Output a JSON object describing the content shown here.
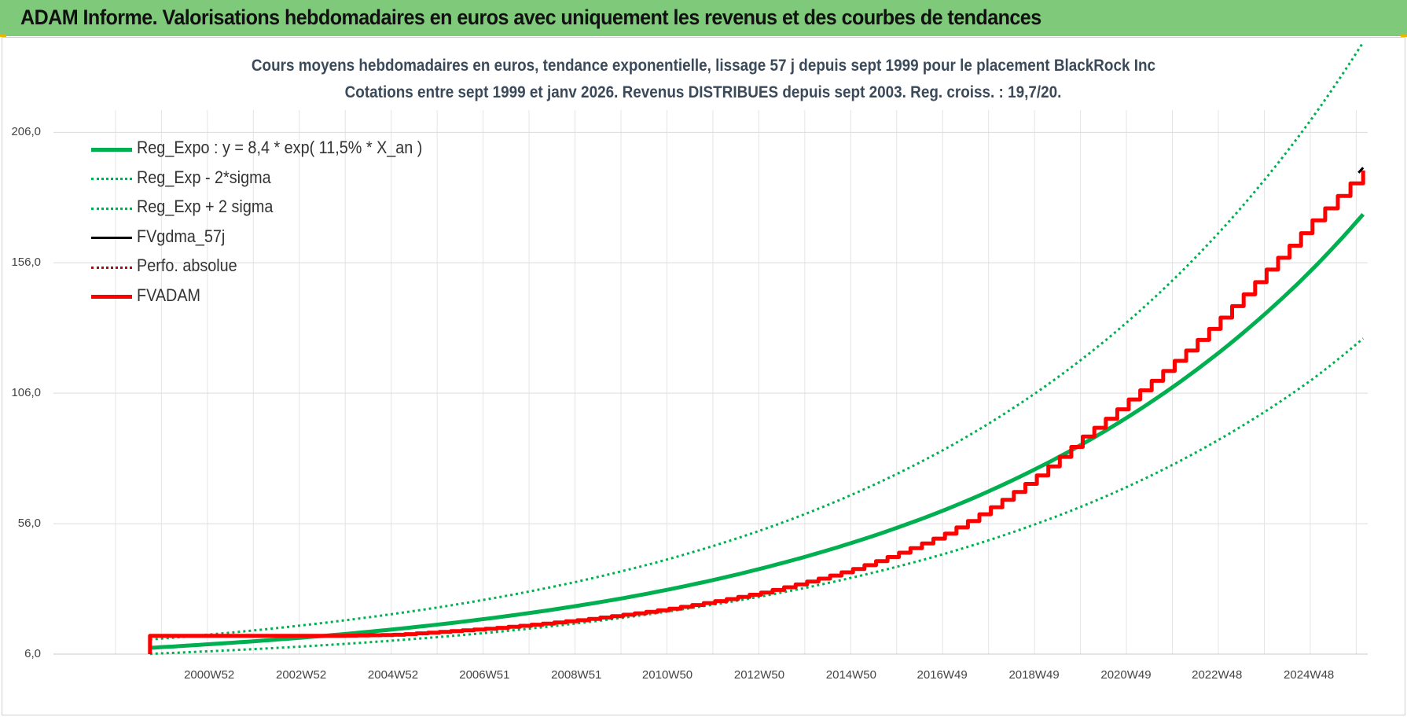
{
  "banner": {
    "title": "ADAM Informe. Valorisations hebdomadaires en euros avec uniquement les revenus et des courbes de tendances"
  },
  "chart_data": {
    "type": "line",
    "title": "Cours moyens hebdomadaires en euros, tendance exponentielle, lissage 57 j depuis sept 1999 pour le placement BlackRock Inc",
    "subtitle": "Cotations entre sept 1999 et janv 2026. Revenus DISTRIBUES depuis sept 2003. Reg. croiss. : 19,7/20.",
    "xlabel": "",
    "ylabel": "",
    "x_tick_labels": [
      "2000W52",
      "2002W52",
      "2004W52",
      "2006W51",
      "2008W51",
      "2010W50",
      "2012W50",
      "2014W50",
      "2016W49",
      "2018W49",
      "2020W49",
      "2022W48",
      "2024W48"
    ],
    "x_tick_years": [
      2000.99,
      2002.99,
      2004.99,
      2006.98,
      2008.98,
      2010.96,
      2012.96,
      2014.96,
      2016.94,
      2018.94,
      2020.94,
      2022.92,
      2024.92
    ],
    "x_range": [
      1997.6,
      2026.2
    ],
    "y_tick_labels": [
      "6,0",
      "56,0",
      "106,0",
      "156,0",
      "206,0"
    ],
    "y_ticks": [
      6,
      56,
      106,
      156,
      206
    ],
    "ylim": [
      6,
      226
    ],
    "grid": true,
    "legend_position": "top-left",
    "series": [
      {
        "name": "Reg_Expo : y = 8,4 * exp( 11,5% *  X_an )",
        "color": "#00b050",
        "style": "solid",
        "x": [
          1999.7,
          2001,
          2003,
          2005,
          2007,
          2009,
          2011,
          2013,
          2015,
          2017,
          2019,
          2021,
          2023,
          2025,
          2026.1
        ],
        "y": [
          8.4,
          9.8,
          12.3,
          15.5,
          19.5,
          24.5,
          30.8,
          38.8,
          48.8,
          61.3,
          77.2,
          97.1,
          122.1,
          153.6,
          174.6
        ]
      },
      {
        "name": "Reg_Exp - 2*sigma",
        "color": "#00b050",
        "style": "dotted",
        "x": [
          1999.7,
          2001,
          2003,
          2005,
          2007,
          2009,
          2011,
          2013,
          2015,
          2017,
          2019,
          2021,
          2023,
          2025,
          2026.1
        ],
        "y": [
          6.1,
          7.1,
          8.9,
          11.2,
          14.1,
          17.8,
          22.4,
          28.1,
          35.4,
          44.5,
          56.0,
          70.4,
          88.6,
          111.4,
          127.0
        ]
      },
      {
        "name": "Reg_Exp + 2 sigma",
        "color": "#00b050",
        "style": "dotted",
        "x": [
          1999.7,
          2001,
          2003,
          2005,
          2007,
          2009,
          2011,
          2013,
          2015,
          2017,
          2019,
          2021,
          2023,
          2025,
          2026.1
        ],
        "y": [
          11.6,
          13.5,
          17.0,
          21.4,
          26.9,
          33.8,
          42.5,
          53.5,
          67.3,
          84.6,
          106.4,
          133.8,
          168.3,
          211.7,
          240.5
        ]
      },
      {
        "name": "FVgdma_57j",
        "color": "#000000",
        "style": "solid",
        "x": [
          2026.0,
          2026.1
        ],
        "y": [
          190.5,
          192.5
        ]
      },
      {
        "name": "Perfo. absolue",
        "color": "#c00000",
        "style": "dotted",
        "x": [],
        "y": []
      },
      {
        "name": "FVADAM",
        "color": "#ff0000",
        "style": "solid",
        "x": [
          1999.7,
          1999.7,
          2003.7,
          2005,
          2007,
          2009,
          2011,
          2013,
          2015,
          2017,
          2018,
          2019,
          2020,
          2021,
          2022,
          2023,
          2024,
          2025,
          2026.1
        ],
        "y": [
          6.0,
          13.0,
          13.0,
          13.4,
          15.7,
          19.0,
          23.4,
          29.6,
          38.6,
          52.2,
          62.3,
          74.5,
          89.4,
          103.6,
          118.4,
          135.0,
          153.4,
          172.3,
          191.4
        ]
      }
    ]
  }
}
